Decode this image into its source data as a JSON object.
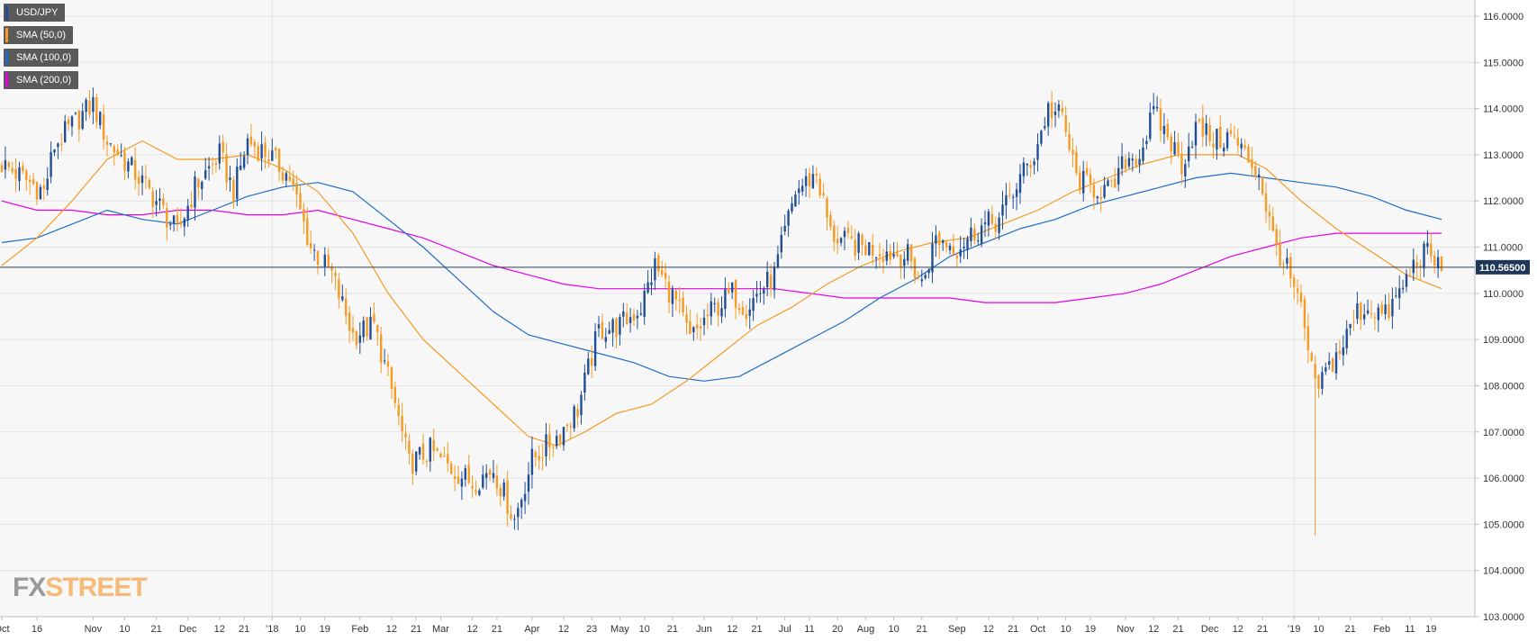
{
  "chart_data": {
    "type": "candlestick",
    "symbol": "USD/JPY",
    "legend": [
      {
        "label": "USD/JPY",
        "color": "#1f4e96"
      },
      {
        "label": "SMA (50,0)",
        "color": "#f59a23"
      },
      {
        "label": "SMA (100,0)",
        "color": "#1f6cc4"
      },
      {
        "label": "SMA (200,0)",
        "color": "#e600e6"
      }
    ],
    "y_ticks": [
      "103.0000",
      "104.0000",
      "105.0000",
      "106.0000",
      "107.0000",
      "108.0000",
      "109.0000",
      "110.0000",
      "111.0000",
      "112.0000",
      "113.0000",
      "114.0000",
      "115.0000",
      "116.0000"
    ],
    "ylim": [
      103.0,
      116.35
    ],
    "x_ticks": [
      {
        "label": "Oct",
        "d": 0
      },
      {
        "label": "16",
        "d": 10
      },
      {
        "label": "Nov",
        "d": 26
      },
      {
        "label": "10",
        "d": 35
      },
      {
        "label": "21",
        "d": 44
      },
      {
        "label": "Dec",
        "d": 53
      },
      {
        "label": "12",
        "d": 62
      },
      {
        "label": "21",
        "d": 69
      },
      {
        "label": "'18",
        "d": 77
      },
      {
        "label": "10",
        "d": 85
      },
      {
        "label": "19",
        "d": 92
      },
      {
        "label": "Feb",
        "d": 102
      },
      {
        "label": "12",
        "d": 111
      },
      {
        "label": "21",
        "d": 118
      },
      {
        "label": "Mar",
        "d": 125
      },
      {
        "label": "12",
        "d": 134
      },
      {
        "label": "21",
        "d": 141
      },
      {
        "label": "Apr",
        "d": 151
      },
      {
        "label": "12",
        "d": 160
      },
      {
        "label": "23",
        "d": 168
      },
      {
        "label": "May",
        "d": 176
      },
      {
        "label": "10",
        "d": 183
      },
      {
        "label": "21",
        "d": 191
      },
      {
        "label": "Jun",
        "d": 200
      },
      {
        "label": "12",
        "d": 208
      },
      {
        "label": "21",
        "d": 215
      },
      {
        "label": "Jul",
        "d": 223
      },
      {
        "label": "11",
        "d": 230
      },
      {
        "label": "20",
        "d": 238
      },
      {
        "label": "Aug",
        "d": 246
      },
      {
        "label": "10",
        "d": 254
      },
      {
        "label": "21",
        "d": 262
      },
      {
        "label": "Sep",
        "d": 272
      },
      {
        "label": "12",
        "d": 281
      },
      {
        "label": "21",
        "d": 288
      },
      {
        "label": "Oct",
        "d": 295
      },
      {
        "label": "10",
        "d": 303
      },
      {
        "label": "19",
        "d": 310
      },
      {
        "label": "Nov",
        "d": 320
      },
      {
        "label": "12",
        "d": 328
      },
      {
        "label": "21",
        "d": 335
      },
      {
        "label": "Dec",
        "d": 344
      },
      {
        "label": "12",
        "d": 352
      },
      {
        "label": "21",
        "d": 359
      },
      {
        "label": "'19",
        "d": 368
      },
      {
        "label": "10",
        "d": 375
      },
      {
        "label": "21",
        "d": 384
      },
      {
        "label": "Feb",
        "d": 393
      },
      {
        "label": "11",
        "d": 401
      },
      {
        "label": "19",
        "d": 407
      }
    ],
    "close_keypoints": [
      [
        0,
        112.8
      ],
      [
        6,
        112.5
      ],
      [
        12,
        112.2
      ],
      [
        15,
        113.2
      ],
      [
        22,
        113.8
      ],
      [
        26,
        114.1
      ],
      [
        30,
        113.3
      ],
      [
        38,
        112.6
      ],
      [
        44,
        112.0
      ],
      [
        50,
        111.3
      ],
      [
        55,
        112.3
      ],
      [
        62,
        113.0
      ],
      [
        66,
        112.2
      ],
      [
        70,
        113.3
      ],
      [
        76,
        113.0
      ],
      [
        82,
        112.5
      ],
      [
        88,
        111.0
      ],
      [
        94,
        110.4
      ],
      [
        100,
        109.1
      ],
      [
        106,
        109.3
      ],
      [
        112,
        107.6
      ],
      [
        116,
        106.3
      ],
      [
        122,
        106.6
      ],
      [
        128,
        106.2
      ],
      [
        134,
        105.9
      ],
      [
        140,
        106.2
      ],
      [
        146,
        105.1
      ],
      [
        151,
        106.4
      ],
      [
        158,
        106.9
      ],
      [
        164,
        107.5
      ],
      [
        170,
        109.2
      ],
      [
        176,
        109.3
      ],
      [
        182,
        109.7
      ],
      [
        186,
        110.6
      ],
      [
        192,
        109.8
      ],
      [
        196,
        109.0
      ],
      [
        202,
        109.6
      ],
      [
        208,
        110.0
      ],
      [
        212,
        109.7
      ],
      [
        220,
        110.4
      ],
      [
        226,
        112.2
      ],
      [
        232,
        112.6
      ],
      [
        236,
        111.3
      ],
      [
        240,
        111.1
      ],
      [
        246,
        111.0
      ],
      [
        252,
        110.9
      ],
      [
        258,
        110.8
      ],
      [
        262,
        110.2
      ],
      [
        266,
        111.2
      ],
      [
        272,
        111.0
      ],
      [
        278,
        111.4
      ],
      [
        284,
        111.6
      ],
      [
        290,
        112.5
      ],
      [
        294,
        113.0
      ],
      [
        298,
        114.0
      ],
      [
        302,
        113.8
      ],
      [
        306,
        112.5
      ],
      [
        310,
        112.3
      ],
      [
        316,
        112.2
      ],
      [
        320,
        112.9
      ],
      [
        324,
        113.0
      ],
      [
        328,
        113.9
      ],
      [
        332,
        113.4
      ],
      [
        336,
        112.8
      ],
      [
        340,
        113.6
      ],
      [
        346,
        113.3
      ],
      [
        350,
        113.4
      ],
      [
        354,
        113.0
      ],
      [
        358,
        112.6
      ],
      [
        362,
        111.2
      ],
      [
        366,
        110.5
      ],
      [
        370,
        109.6
      ],
      [
        374,
        107.9
      ],
      [
        378,
        108.4
      ],
      [
        382,
        108.9
      ],
      [
        386,
        109.6
      ],
      [
        390,
        109.7
      ],
      [
        394,
        109.5
      ],
      [
        398,
        110.0
      ],
      [
        402,
        110.6
      ],
      [
        405,
        110.9
      ],
      [
        410,
        110.56
      ]
    ],
    "spikes": [
      {
        "d": 374,
        "low": 104.75,
        "high": 108.3
      }
    ],
    "sma50": [
      [
        0,
        110.6
      ],
      [
        10,
        111.2
      ],
      [
        20,
        112.0
      ],
      [
        30,
        112.9
      ],
      [
        40,
        113.3
      ],
      [
        50,
        112.9
      ],
      [
        60,
        112.9
      ],
      [
        70,
        113.0
      ],
      [
        80,
        112.7
      ],
      [
        90,
        112.2
      ],
      [
        100,
        111.3
      ],
      [
        110,
        110.0
      ],
      [
        120,
        109.0
      ],
      [
        130,
        108.3
      ],
      [
        140,
        107.6
      ],
      [
        150,
        106.9
      ],
      [
        158,
        106.7
      ],
      [
        166,
        107.0
      ],
      [
        175,
        107.4
      ],
      [
        185,
        107.6
      ],
      [
        195,
        108.1
      ],
      [
        205,
        108.7
      ],
      [
        215,
        109.3
      ],
      [
        225,
        109.7
      ],
      [
        235,
        110.2
      ],
      [
        245,
        110.6
      ],
      [
        255,
        110.9
      ],
      [
        265,
        111.1
      ],
      [
        275,
        111.2
      ],
      [
        285,
        111.5
      ],
      [
        295,
        111.8
      ],
      [
        305,
        112.2
      ],
      [
        315,
        112.5
      ],
      [
        325,
        112.8
      ],
      [
        335,
        113.0
      ],
      [
        345,
        113.0
      ],
      [
        352,
        113.0
      ],
      [
        360,
        112.7
      ],
      [
        370,
        112.0
      ],
      [
        380,
        111.4
      ],
      [
        390,
        110.9
      ],
      [
        400,
        110.4
      ],
      [
        410,
        110.1
      ]
    ],
    "sma100": [
      [
        0,
        111.1
      ],
      [
        10,
        111.2
      ],
      [
        20,
        111.5
      ],
      [
        30,
        111.8
      ],
      [
        40,
        111.6
      ],
      [
        50,
        111.5
      ],
      [
        60,
        111.8
      ],
      [
        70,
        112.1
      ],
      [
        80,
        112.3
      ],
      [
        90,
        112.4
      ],
      [
        100,
        112.2
      ],
      [
        110,
        111.6
      ],
      [
        120,
        111.0
      ],
      [
        130,
        110.3
      ],
      [
        140,
        109.6
      ],
      [
        150,
        109.1
      ],
      [
        160,
        108.9
      ],
      [
        170,
        108.7
      ],
      [
        180,
        108.5
      ],
      [
        190,
        108.2
      ],
      [
        200,
        108.1
      ],
      [
        210,
        108.2
      ],
      [
        220,
        108.6
      ],
      [
        230,
        109.0
      ],
      [
        240,
        109.4
      ],
      [
        250,
        109.9
      ],
      [
        260,
        110.3
      ],
      [
        270,
        110.8
      ],
      [
        280,
        111.1
      ],
      [
        290,
        111.4
      ],
      [
        300,
        111.6
      ],
      [
        310,
        111.9
      ],
      [
        320,
        112.1
      ],
      [
        330,
        112.3
      ],
      [
        340,
        112.5
      ],
      [
        350,
        112.6
      ],
      [
        360,
        112.5
      ],
      [
        370,
        112.4
      ],
      [
        380,
        112.3
      ],
      [
        390,
        112.1
      ],
      [
        400,
        111.8
      ],
      [
        410,
        111.6
      ]
    ],
    "sma200": [
      [
        0,
        112.0
      ],
      [
        10,
        111.8
      ],
      [
        20,
        111.8
      ],
      [
        30,
        111.7
      ],
      [
        40,
        111.7
      ],
      [
        50,
        111.8
      ],
      [
        60,
        111.8
      ],
      [
        70,
        111.7
      ],
      [
        80,
        111.7
      ],
      [
        90,
        111.8
      ],
      [
        100,
        111.6
      ],
      [
        110,
        111.4
      ],
      [
        120,
        111.2
      ],
      [
        130,
        110.9
      ],
      [
        140,
        110.6
      ],
      [
        150,
        110.4
      ],
      [
        160,
        110.2
      ],
      [
        170,
        110.1
      ],
      [
        180,
        110.1
      ],
      [
        190,
        110.1
      ],
      [
        200,
        110.1
      ],
      [
        210,
        110.1
      ],
      [
        220,
        110.1
      ],
      [
        230,
        110.0
      ],
      [
        240,
        109.9
      ],
      [
        250,
        109.9
      ],
      [
        260,
        109.9
      ],
      [
        270,
        109.9
      ],
      [
        280,
        109.8
      ],
      [
        290,
        109.8
      ],
      [
        300,
        109.8
      ],
      [
        310,
        109.9
      ],
      [
        320,
        110.0
      ],
      [
        330,
        110.2
      ],
      [
        340,
        110.5
      ],
      [
        350,
        110.8
      ],
      [
        360,
        111.0
      ],
      [
        370,
        111.2
      ],
      [
        380,
        111.3
      ],
      [
        390,
        111.3
      ],
      [
        400,
        111.3
      ],
      [
        410,
        111.3
      ]
    ],
    "last_price": 110.565,
    "last_price_label": "110.56500",
    "total_days": 411
  },
  "watermark": {
    "fx": "FX",
    "street": "STREET"
  },
  "colors": {
    "bull": "#1f4e96",
    "bear": "#f59a23",
    "grid": "#e3e3e3",
    "plot_bg": "#f7f7f7",
    "axis_text": "#333333"
  }
}
